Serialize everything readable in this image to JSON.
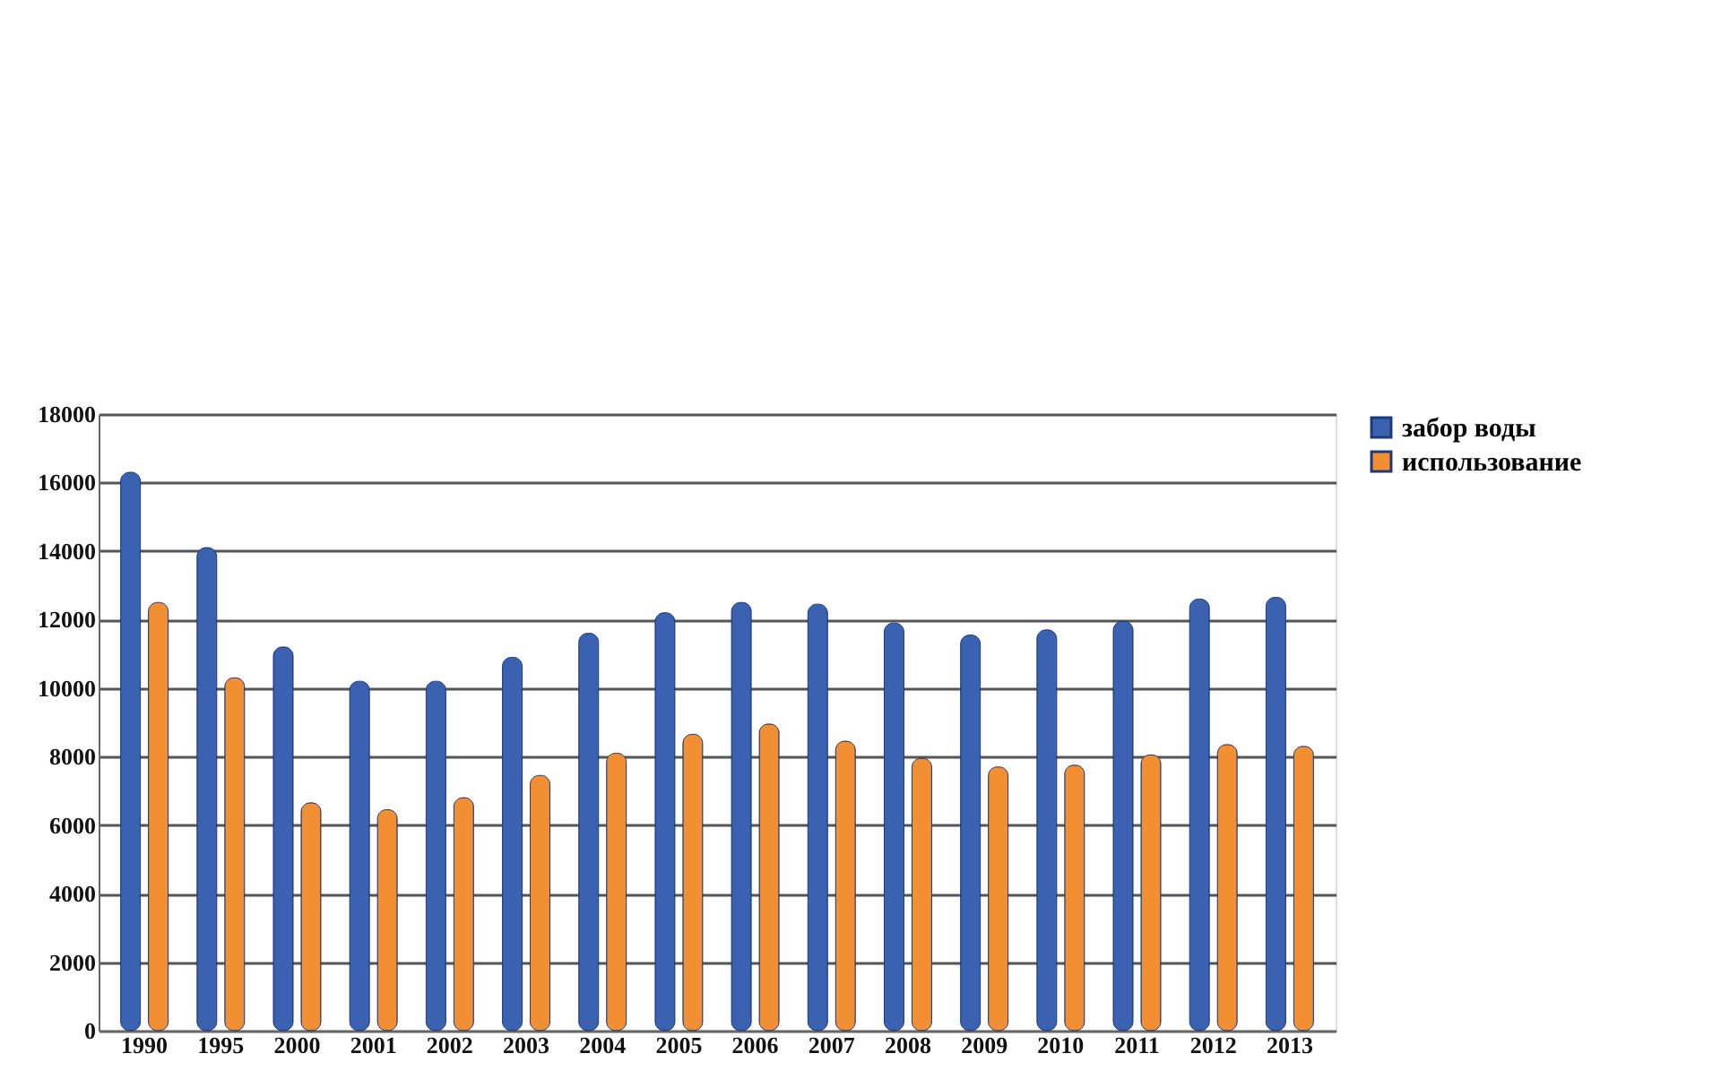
{
  "chart_data": {
    "type": "bar",
    "categories": [
      "1990",
      "1995",
      "2000",
      "2001",
      "2002",
      "2003",
      "2004",
      "2005",
      "2006",
      "2007",
      "2008",
      "2009",
      "2010",
      "2011",
      "2012",
      "2013"
    ],
    "series": [
      {
        "name": "забор воды",
        "color": "#3a62b0",
        "values": [
          16300,
          14100,
          11200,
          10200,
          10200,
          10900,
          11600,
          12200,
          12500,
          12450,
          11900,
          11550,
          11700,
          11950,
          12600,
          12650
        ]
      },
      {
        "name": "использование",
        "color": "#f28f33",
        "values": [
          12500,
          10300,
          6650,
          6450,
          6800,
          7450,
          8100,
          8650,
          8950,
          8450,
          7950,
          7700,
          7750,
          8050,
          8350,
          8300
        ]
      }
    ],
    "ylim": [
      0,
      18000
    ],
    "yticks": [
      0,
      2000,
      4000,
      6000,
      8000,
      10000,
      12000,
      14000,
      16000,
      18000
    ],
    "grid": "y",
    "legend": "right"
  }
}
